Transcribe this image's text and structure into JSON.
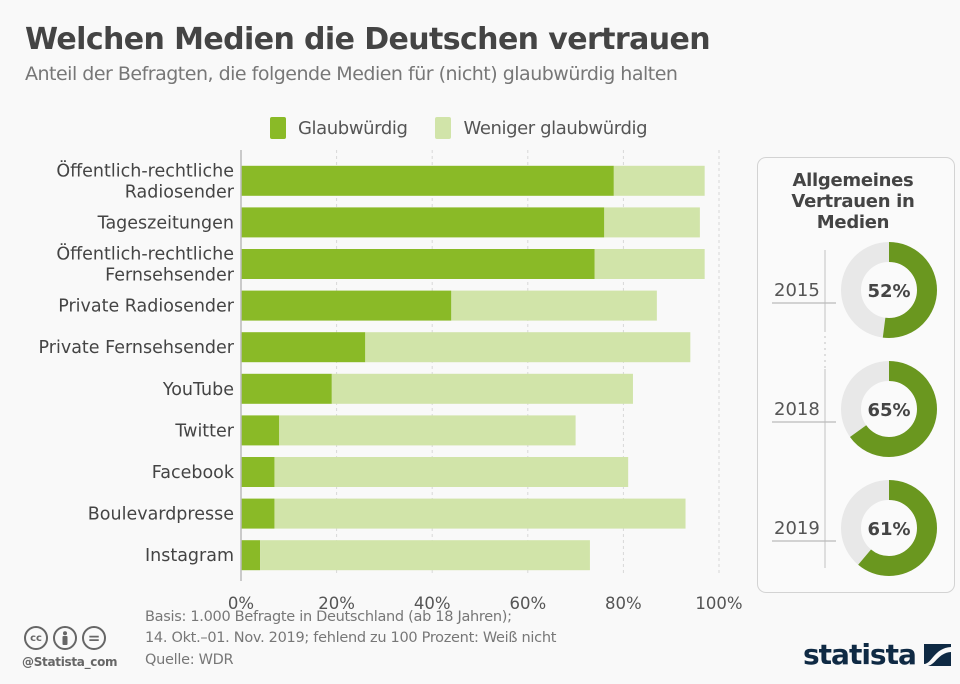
{
  "header": {
    "title": "Welchen Medien die Deutschen vertrauen",
    "subtitle": "Anteil der Befragten, die folgende Medien für (nicht) glaubwürdig halten"
  },
  "legend": [
    {
      "label": "Glaubwürdig",
      "color": "#8aba27"
    },
    {
      "label": "Weniger glaubwürdig",
      "color": "#d1e4a9"
    }
  ],
  "chart_data": [
    {
      "type": "bar",
      "orientation": "horizontal",
      "stacked": true,
      "title": "Welchen Medien die Deutschen vertrauen",
      "subtitle": "Anteil der Befragten, die folgende Medien für (nicht) glaubwürdig halten",
      "categories": [
        [
          "Öffentlich-rechtliche",
          "Radiosender"
        ],
        [
          "Tageszeitungen"
        ],
        [
          "Öffentlich-rechtliche",
          "Fernsehsender"
        ],
        [
          "Private Radiosender"
        ],
        [
          "Private Fernsehsender"
        ],
        [
          "YouTube"
        ],
        [
          "Twitter"
        ],
        [
          "Facebook"
        ],
        [
          "Boulevardpresse"
        ],
        [
          "Instagram"
        ]
      ],
      "series": [
        {
          "name": "Glaubwürdig",
          "color": "#8aba27",
          "values": [
            78,
            76,
            74,
            44,
            26,
            19,
            8,
            7,
            7,
            4
          ]
        },
        {
          "name": "Weniger glaubwürdig",
          "color": "#d1e4a9",
          "values": [
            19,
            20,
            23,
            43,
            68,
            63,
            62,
            74,
            86,
            69
          ]
        }
      ],
      "xlim": [
        0,
        100
      ],
      "xticks": [
        "0%",
        "20%",
        "40%",
        "60%",
        "80%",
        "100%"
      ],
      "grid": true,
      "legend_position": "top",
      "unit": "%"
    },
    {
      "type": "pie",
      "variant": "donut",
      "title": "Allgemeines Vertrauen in Medien",
      "items": [
        {
          "year": "2015",
          "value": 52,
          "label": "52%"
        },
        {
          "year": "2018",
          "value": 65,
          "label": "65%"
        },
        {
          "year": "2019",
          "value": 61,
          "label": "61%"
        }
      ],
      "fill_color": "#6a971f",
      "rest_color": "#e8e8e8"
    }
  ],
  "panel": {
    "title_lines": [
      "Allgemeines",
      "Vertrauen in",
      "Medien"
    ]
  },
  "footer": {
    "note_lines": [
      "Basis: 1.000 Befragte in Deutschland (ab 18 Jahren);",
      "14. Okt.–01. Nov. 2019; fehlend zu 100 Prozent: Weiß nicht"
    ],
    "source": "Quelle: WDR",
    "handle": "@Statista_com",
    "license_icons": [
      "cc-icon",
      "by-icon",
      "nd-icon"
    ],
    "cc_text": "cc",
    "nd_text": "=",
    "logo_text": "statista"
  }
}
